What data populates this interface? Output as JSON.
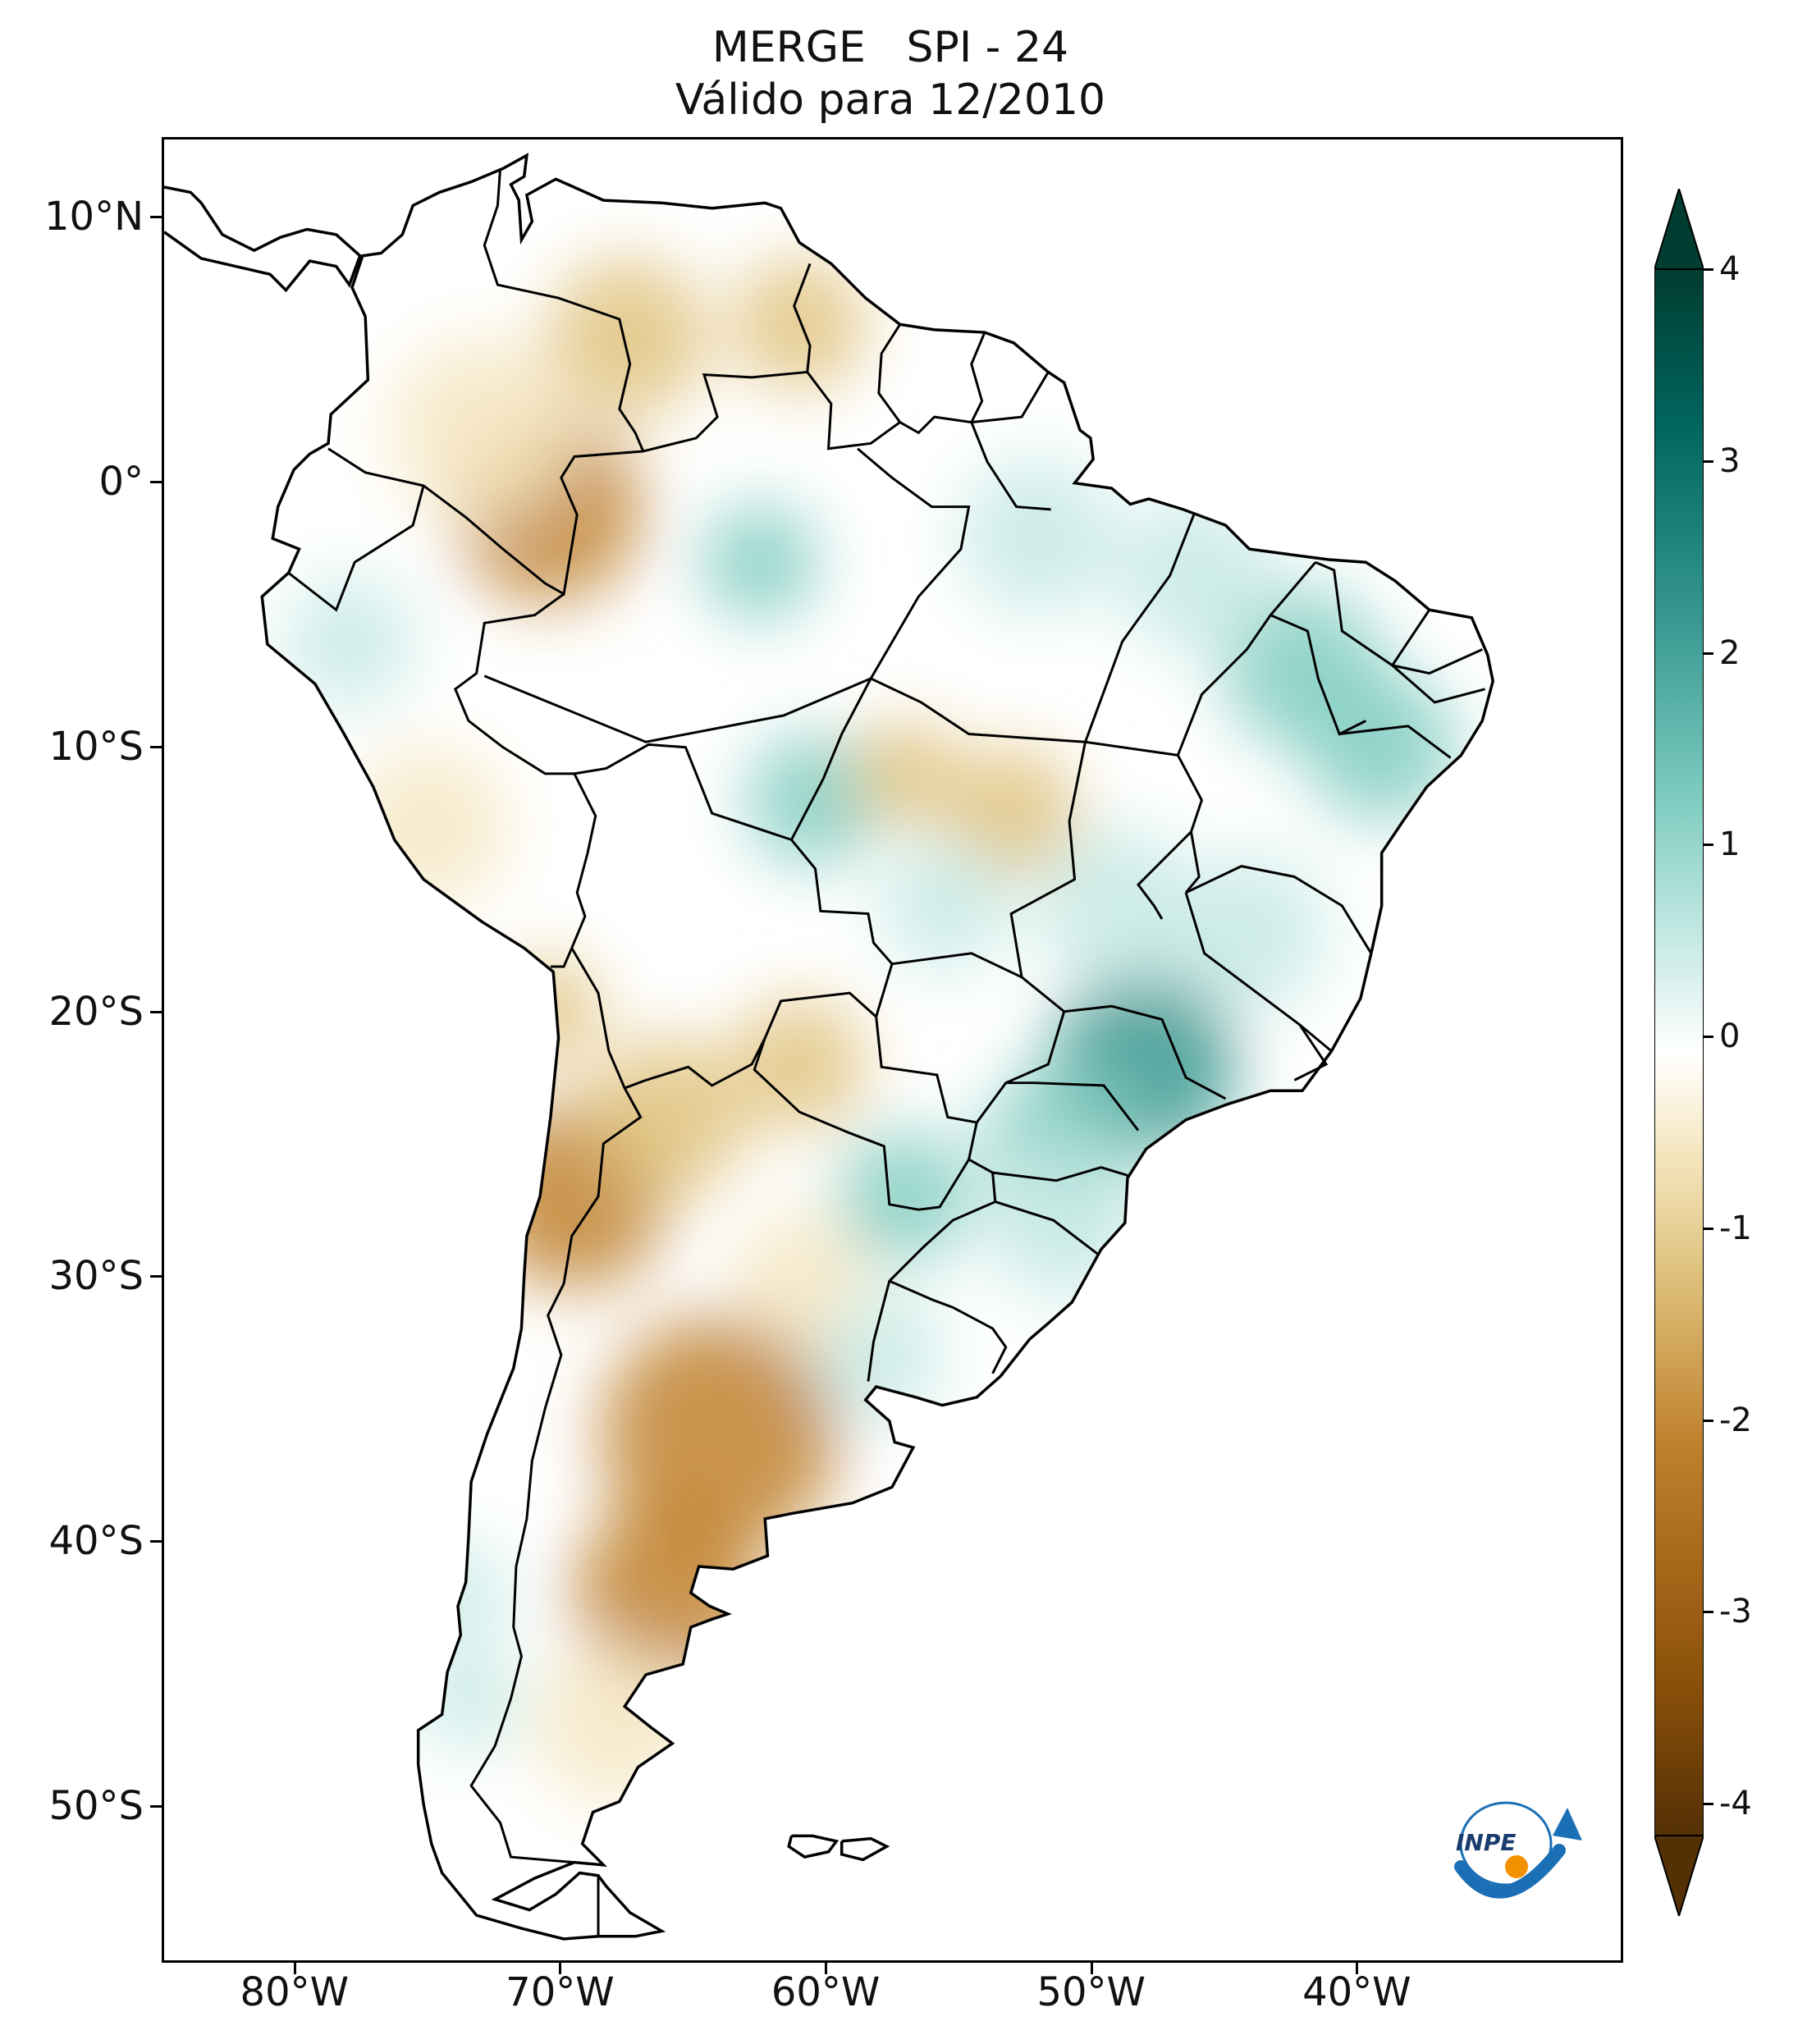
{
  "title": {
    "line1": "MERGE   SPI - 24",
    "line2": "Válido para 12/2010"
  },
  "axes": {
    "lat_labels": [
      {
        "text": "10°N",
        "value": 10
      },
      {
        "text": "0°",
        "value": 0
      },
      {
        "text": "10°S",
        "value": -10
      },
      {
        "text": "20°S",
        "value": -20
      },
      {
        "text": "30°S",
        "value": -30
      },
      {
        "text": "40°S",
        "value": -40
      },
      {
        "text": "50°S",
        "value": -50
      }
    ],
    "lon_labels": [
      {
        "text": "80°W",
        "value": -80
      },
      {
        "text": "70°W",
        "value": -70
      },
      {
        "text": "60°W",
        "value": -60
      },
      {
        "text": "50°W",
        "value": -50
      },
      {
        "text": "40°W",
        "value": -40
      }
    ],
    "lon_range": [
      -85,
      -30
    ],
    "lat_range": [
      -56,
      13
    ]
  },
  "colorbar": {
    "ticks": [
      {
        "text": "4",
        "value": 4
      },
      {
        "text": "3",
        "value": 3
      },
      {
        "text": "2",
        "value": 2
      },
      {
        "text": "1",
        "value": 1
      },
      {
        "text": "0",
        "value": 0
      },
      {
        "text": "-1",
        "value": -1
      },
      {
        "text": "-2",
        "value": -2
      },
      {
        "text": "-3",
        "value": -3
      },
      {
        "text": "-4",
        "value": -4
      }
    ],
    "range": [
      -4,
      4
    ],
    "colors": {
      "dry_max": "#543005",
      "dry_strong": "#8c510a",
      "dry_mid": "#bf812d",
      "dry_light": "#dfc27d",
      "dry_faint": "#f6e8c3",
      "neutral": "#ffffff",
      "wet_faint": "#c7eae5",
      "wet_light": "#80cdc1",
      "wet_mid": "#35978f",
      "wet_strong": "#01665e",
      "wet_max": "#003c30"
    }
  },
  "logo": {
    "text": "INPE",
    "colors": {
      "blue": "#1a6fb5",
      "orange": "#f39200"
    }
  }
}
